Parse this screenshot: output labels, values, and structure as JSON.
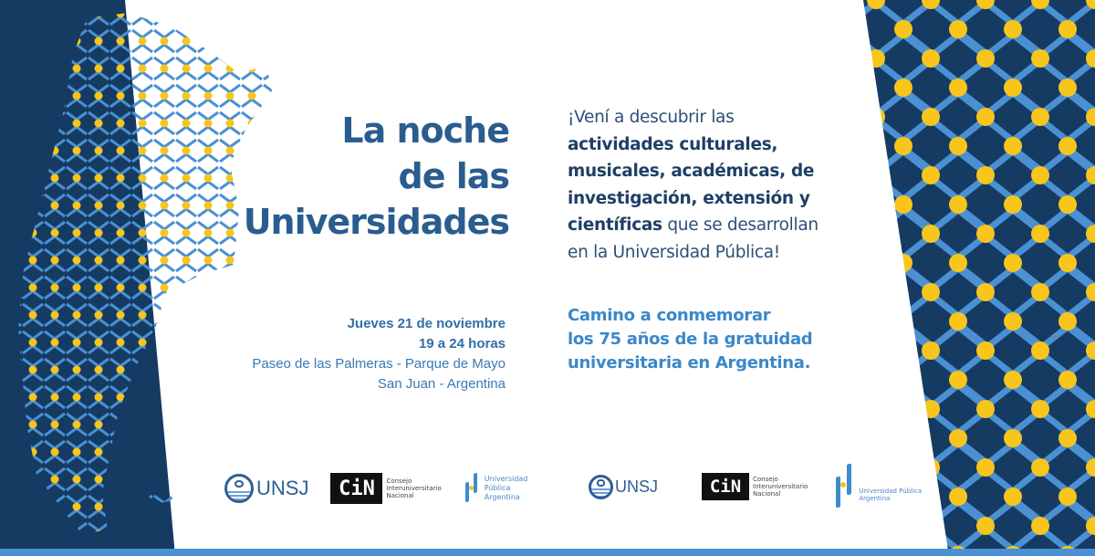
{
  "colors": {
    "navy": "#153b63",
    "light_blue": "#4a90d2",
    "sun_yellow": "#f7c51c",
    "title_blue": "#2a5d8f",
    "accent_blue": "#3b87c9"
  },
  "headline": {
    "lines": [
      "La noche",
      "de las",
      "Universidades"
    ]
  },
  "event": {
    "date": "Jueves 21 de noviembre",
    "hours": "19 a 24 horas",
    "place": "Paseo de las Palmeras - Parque de Mayo",
    "city": "San Juan - Argentina"
  },
  "pitch": {
    "l1": "¡Vení a descubrir las",
    "l2": "actividades culturales,",
    "l3": "musicales, académicas, de",
    "l4": "investigación, extensión y",
    "l5b": "científicas",
    "l5": " que se desarrollan",
    "l6": "en la Universidad Pública!"
  },
  "camino": {
    "lines": [
      "Camino a conmemorar",
      "los 75 años de la gratuidad",
      "universitaria en Argentina."
    ]
  },
  "logos": {
    "unsj": "UNSJ",
    "cin": "CiN",
    "cin_sub": [
      "Consejo",
      "Interuniversitario",
      "Nacional"
    ],
    "upa": [
      "Universidad",
      "Pública",
      "Argentina"
    ],
    "upa_inline": [
      "Universidad Pública",
      "Argentina"
    ]
  }
}
